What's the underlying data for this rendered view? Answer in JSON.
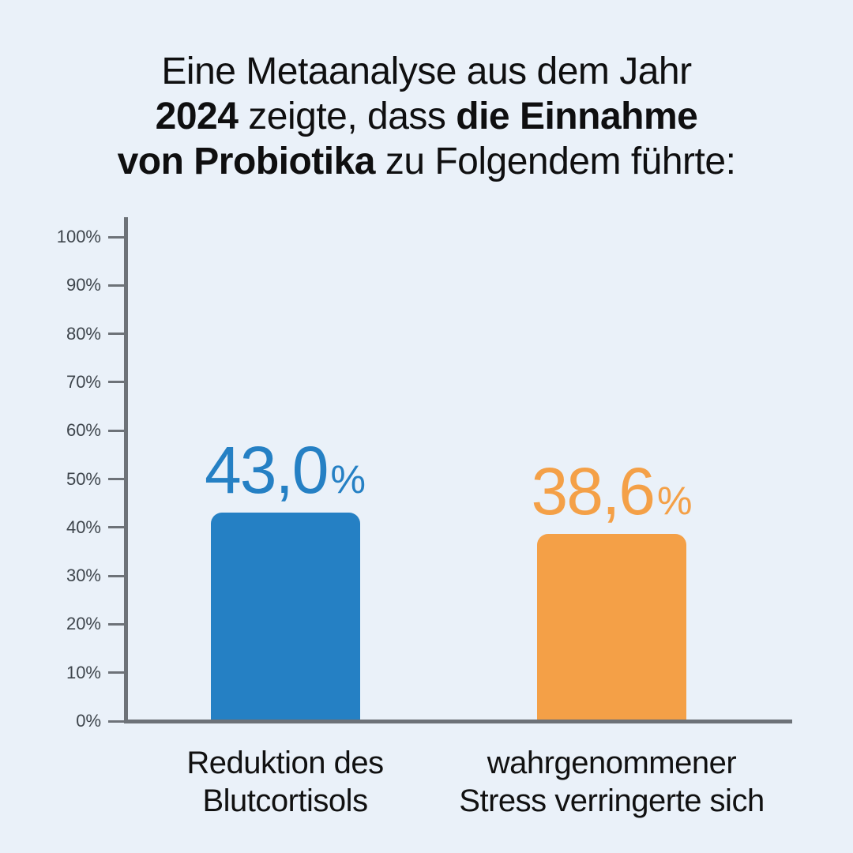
{
  "colors": {
    "background": "#eaf1f9",
    "axis": "#6d7278",
    "tick_text": "#3e454c",
    "title_text": "#0f0f10",
    "category_text": "#111111",
    "bar_blue": "#2580c4",
    "bar_orange": "#f4a047"
  },
  "title": {
    "lines": [
      {
        "segments": [
          {
            "text": "Eine Metaanalyse aus dem Jahr",
            "bold": false
          }
        ]
      },
      {
        "segments": [
          {
            "text": "2024",
            "bold": true
          },
          {
            "text": "zeigte, dass",
            "bold": false
          },
          {
            "text": "die Einnahme",
            "bold": true
          }
        ]
      },
      {
        "segments": [
          {
            "text": "von Probiotika",
            "bold": true
          },
          {
            "text": "zu Folgendem führte:",
            "bold": false
          }
        ]
      }
    ]
  },
  "chart_data": {
    "type": "bar",
    "title": "Eine Metaanalyse aus dem Jahr 2024 zeigte, dass die Einnahme von Probiotika zu Folgendem führte:",
    "categories": [
      "Reduktion des Blutcortisols",
      "wahrgenommener Stress verringerte sich"
    ],
    "category_lines": [
      [
        "Reduktion des",
        "Blutcortisols"
      ],
      [
        "wahrgenommener",
        "Stress verringerte sich"
      ]
    ],
    "values": [
      43.0,
      38.6
    ],
    "value_labels": [
      {
        "number": "43,0",
        "suffix": "%"
      },
      {
        "number": "38,6",
        "suffix": "%"
      }
    ],
    "bar_colors": [
      "#2580c4",
      "#f4a047"
    ],
    "xlabel": "",
    "ylabel": "",
    "ylim": [
      0,
      100
    ],
    "ytick_step": 10,
    "ytick_labels": [
      "0%",
      "10%",
      "20%",
      "30%",
      "40%",
      "50%",
      "60%",
      "70%",
      "80%",
      "90%",
      "100%"
    ],
    "grid": false,
    "legend": "none"
  }
}
